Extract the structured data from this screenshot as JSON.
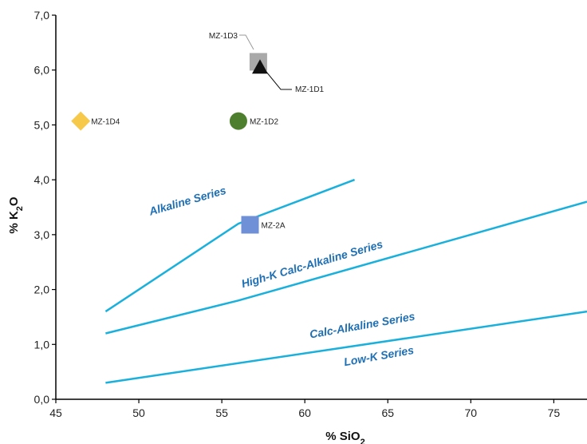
{
  "colors": {
    "boundary": "#1ab0dc",
    "series_label": "#1f6fb4",
    "axis": "#000000"
  },
  "chart_data": {
    "type": "scatter",
    "title": "",
    "xlabel": "% SiO",
    "xlabel_sub": "2",
    "ylabel_parts": [
      "% K",
      "2",
      "O"
    ],
    "xlim": [
      45,
      77
    ],
    "ylim": [
      0,
      7
    ],
    "xticks": [
      45,
      50,
      55,
      60,
      65,
      70,
      75
    ],
    "yticks": [
      0,
      1,
      2,
      3,
      4,
      5,
      6,
      7
    ],
    "ytick_labels": [
      "0,0",
      "1,0",
      "2,0",
      "3,0",
      "4,0",
      "5,0",
      "6,0",
      "7,0"
    ],
    "grid": false,
    "boundaries": [
      {
        "id": "alkaline-boundary",
        "points": [
          [
            48,
            1.6
          ],
          [
            56,
            3.2
          ],
          [
            63,
            4.0
          ]
        ]
      },
      {
        "id": "high-k-boundary",
        "points": [
          [
            48,
            1.2
          ],
          [
            56,
            1.8
          ],
          [
            77,
            3.6
          ]
        ]
      },
      {
        "id": "calc-alkaline-boundary",
        "points": [
          [
            48,
            0.3
          ],
          [
            77,
            1.6
          ]
        ]
      }
    ],
    "series_labels": [
      {
        "text": "Alkaline Series",
        "x": 53,
        "y": 3.55,
        "angle": -16
      },
      {
        "text": "High-K Calc-Alkaline Series",
        "x": 60.5,
        "y": 2.4,
        "angle": -16
      },
      {
        "text": "Calc-Alkaline Series",
        "x": 63.5,
        "y": 1.28,
        "angle": -10
      },
      {
        "text": "Low-K Series",
        "x": 64.5,
        "y": 0.72,
        "angle": -10
      }
    ],
    "points": [
      {
        "label": "MZ-1D3",
        "x": 57.2,
        "y": 6.15,
        "marker": "square",
        "color": "#a9a9a9",
        "leader": true
      },
      {
        "label": "MZ-1D1",
        "x": 57.3,
        "y": 6.05,
        "marker": "triangle",
        "color": "#111111",
        "leader": true
      },
      {
        "label": "MZ-1D2",
        "x": 56.0,
        "y": 5.07,
        "marker": "circle",
        "color": "#4e7f2e",
        "leader": false
      },
      {
        "label": "MZ-1D4",
        "x": 46.5,
        "y": 5.07,
        "marker": "diamond",
        "color": "#f7c94b",
        "leader": false
      },
      {
        "label": "MZ-2A",
        "x": 56.7,
        "y": 3.18,
        "marker": "square",
        "color": "#6f8fd6",
        "leader": false
      }
    ]
  }
}
